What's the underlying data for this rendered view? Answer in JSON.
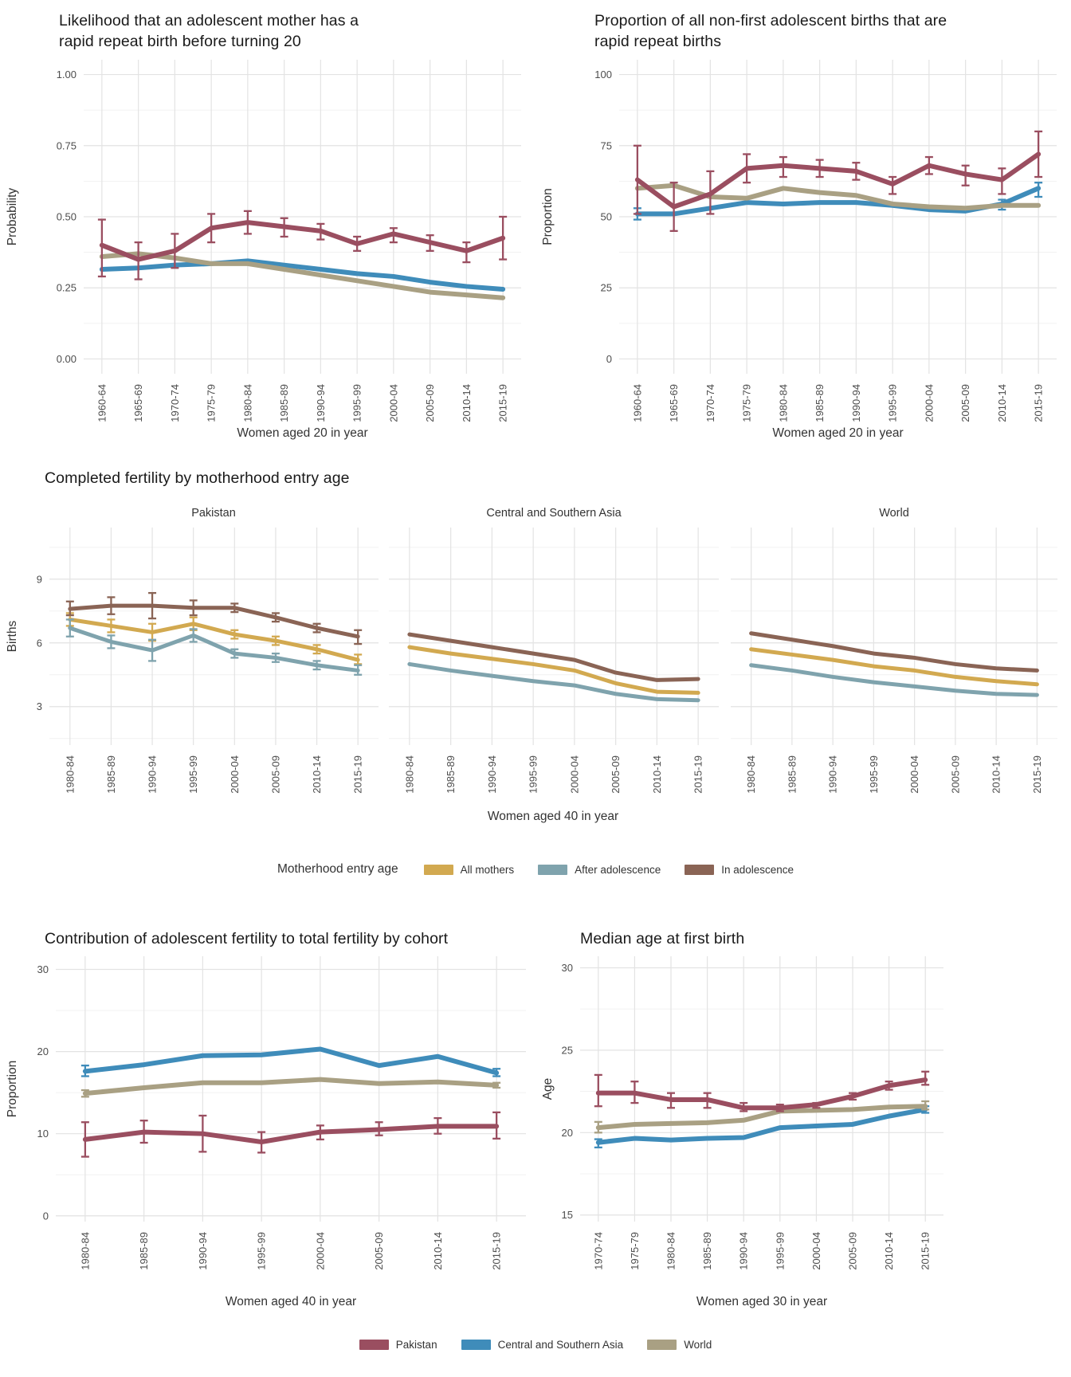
{
  "figure": {
    "background": "#ffffff"
  },
  "middle_section": {
    "title": "Completed fertility by motherhood entry age",
    "xlabel": "Women aged 40 in year"
  },
  "legend_entry_age": {
    "title": "Motherhood entry age",
    "items": [
      {
        "label": "All mothers",
        "color": "#d2a950"
      },
      {
        "label": "After adolescence",
        "color": "#7fa3ad"
      },
      {
        "label": "In adolescence",
        "color": "#8a6455"
      }
    ]
  },
  "legend_regions": {
    "items": [
      {
        "label": "Pakistan",
        "color": "#9a4e60"
      },
      {
        "label": "Central and Southern Asia",
        "color": "#3f8cba"
      },
      {
        "label": "World",
        "color": "#a9a083"
      }
    ]
  },
  "chart_data": [
    {
      "type": "line",
      "title": "Likelihood that an adolescent mother has a rapid repeat birth before turning 20",
      "title_line1": "Likelihood that an adolescent mother has a",
      "title_line2": "rapid repeat birth before turning 20",
      "xlabel": "Women aged 20 in year",
      "ylabel": "Probability",
      "categories": [
        "1960-64",
        "1965-69",
        "1970-74",
        "1975-79",
        "1980-84",
        "1985-89",
        "1990-94",
        "1995-99",
        "2000-04",
        "2005-09",
        "2010-14",
        "2015-19"
      ],
      "ylim": [
        -0.052,
        1.052
      ],
      "yticks": [
        0,
        0.25,
        0.5,
        0.75,
        1
      ],
      "ytick_labels": [
        "0.00",
        "0.25",
        "0.50",
        "0.75",
        "1.00"
      ],
      "grid": true,
      "legend_position": "none",
      "series": [
        {
          "name": "Central and Southern Asia",
          "color": "#3f8cba",
          "width": 6,
          "values": [
            0.315,
            0.32,
            0.33,
            0.335,
            0.345,
            0.33,
            0.315,
            0.3,
            0.29,
            0.27,
            0.255,
            0.245
          ]
        },
        {
          "name": "World",
          "color": "#a9a083",
          "width": 6,
          "values": [
            0.36,
            0.37,
            0.355,
            0.335,
            0.335,
            0.315,
            0.295,
            0.275,
            0.255,
            0.235,
            0.225,
            0.215
          ]
        },
        {
          "name": "Pakistan",
          "color": "#9a4e60",
          "width": 6,
          "values": [
            0.4,
            0.35,
            0.38,
            0.46,
            0.48,
            0.465,
            0.45,
            0.405,
            0.44,
            0.41,
            0.38,
            0.425
          ],
          "lo": [
            0.29,
            0.28,
            0.32,
            0.41,
            0.44,
            0.43,
            0.42,
            0.38,
            0.41,
            0.38,
            0.34,
            0.35
          ],
          "hi": [
            0.49,
            0.41,
            0.44,
            0.51,
            0.52,
            0.495,
            0.475,
            0.43,
            0.46,
            0.435,
            0.41,
            0.5
          ]
        }
      ]
    },
    {
      "type": "line",
      "title": "Proportion of all non-first adolescent births that are rapid repeat births",
      "title_line1": "Proportion of all non-first adolescent births that are",
      "title_line2": "rapid repeat births",
      "xlabel": "Women aged 20 in year",
      "ylabel": "Proportion",
      "categories": [
        "1960-64",
        "1965-69",
        "1970-74",
        "1975-79",
        "1980-84",
        "1985-89",
        "1990-94",
        "1995-99",
        "2000-04",
        "2005-09",
        "2010-14",
        "2015-19"
      ],
      "ylim": [
        -5.2,
        105.2
      ],
      "yticks": [
        0,
        25,
        50,
        75,
        100
      ],
      "ytick_labels": [
        "0",
        "25",
        "50",
        "75",
        "100"
      ],
      "grid": true,
      "legend_position": "none",
      "series": [
        {
          "name": "Central and Southern Asia",
          "color": "#3f8cba",
          "width": 6,
          "values": [
            51,
            51,
            53,
            55,
            54.5,
            55,
            55,
            54,
            52.5,
            52,
            54.5,
            60
          ],
          "lo": [
            49,
            null,
            null,
            null,
            null,
            null,
            null,
            null,
            null,
            null,
            52.5,
            57
          ],
          "hi": [
            53,
            null,
            null,
            null,
            null,
            null,
            null,
            null,
            null,
            null,
            56,
            62
          ]
        },
        {
          "name": "World",
          "color": "#a9a083",
          "width": 6,
          "values": [
            60,
            61,
            57,
            56.5,
            60,
            58.5,
            57.5,
            54.5,
            53.5,
            53,
            54,
            54
          ]
        },
        {
          "name": "Pakistan",
          "color": "#9a4e60",
          "width": 6,
          "values": [
            63,
            53.5,
            58,
            67,
            68,
            67,
            66,
            61.5,
            68,
            65,
            63,
            72
          ],
          "lo": [
            51,
            45,
            51,
            62,
            64,
            64,
            63,
            58,
            65,
            61,
            58,
            64
          ],
          "hi": [
            75,
            62,
            66,
            72,
            71,
            70,
            69,
            64,
            71,
            68,
            67,
            80
          ]
        }
      ]
    },
    {
      "type": "line",
      "facet": "Pakistan",
      "xlabel": "",
      "ylabel": "Births",
      "categories": [
        "1980-84",
        "1985-89",
        "1990-94",
        "1995-99",
        "2000-04",
        "2005-09",
        "2010-14",
        "2015-19"
      ],
      "ylim": [
        1.19,
        11.43
      ],
      "yticks": [
        3,
        6,
        9
      ],
      "ytick_labels": [
        "3",
        "6",
        "9"
      ],
      "grid": true,
      "legend_position": "bottom",
      "series": [
        {
          "name": "All mothers",
          "color": "#d2a950",
          "width": 5,
          "values": [
            7.1,
            6.8,
            6.5,
            6.9,
            6.4,
            6.1,
            5.7,
            5.2
          ],
          "lo": [
            6.8,
            6.5,
            6.1,
            6.6,
            6.2,
            5.9,
            5.5,
            5.0
          ],
          "hi": [
            7.4,
            7.1,
            6.9,
            7.2,
            6.6,
            6.3,
            5.9,
            5.45
          ]
        },
        {
          "name": "After adolescence",
          "color": "#7fa3ad",
          "width": 5,
          "values": [
            6.7,
            6.05,
            5.65,
            6.35,
            5.5,
            5.3,
            4.95,
            4.7
          ],
          "lo": [
            6.3,
            5.75,
            5.15,
            6.05,
            5.3,
            5.1,
            4.75,
            4.5
          ],
          "hi": [
            7.1,
            6.35,
            6.15,
            6.65,
            5.7,
            5.5,
            5.15,
            4.95
          ]
        },
        {
          "name": "In adolescence",
          "color": "#8a6455",
          "width": 5,
          "values": [
            7.6,
            7.75,
            7.75,
            7.65,
            7.65,
            7.2,
            6.7,
            6.3
          ],
          "lo": [
            7.3,
            7.35,
            7.15,
            7.3,
            7.45,
            7.0,
            6.5,
            5.95
          ],
          "hi": [
            7.95,
            8.15,
            8.35,
            8.0,
            7.85,
            7.4,
            6.9,
            6.6
          ]
        }
      ]
    },
    {
      "type": "line",
      "facet": "Central and Southern Asia",
      "xlabel": "",
      "ylabel": "",
      "categories": [
        "1980-84",
        "1985-89",
        "1990-94",
        "1995-99",
        "2000-04",
        "2005-09",
        "2010-14",
        "2015-19"
      ],
      "ylim": [
        1.19,
        11.43
      ],
      "yticks": [
        3,
        6,
        9
      ],
      "ytick_labels": [
        "3",
        "6",
        "9"
      ],
      "grid": true,
      "legend_position": "bottom",
      "series": [
        {
          "name": "All mothers",
          "color": "#d2a950",
          "width": 5,
          "values": [
            5.8,
            5.5,
            5.25,
            5.0,
            4.7,
            4.1,
            3.7,
            3.65
          ]
        },
        {
          "name": "After adolescence",
          "color": "#7fa3ad",
          "width": 5,
          "values": [
            5.0,
            4.7,
            4.45,
            4.2,
            4.0,
            3.6,
            3.35,
            3.3
          ]
        },
        {
          "name": "In adolescence",
          "color": "#8a6455",
          "width": 5,
          "values": [
            6.4,
            6.1,
            5.8,
            5.5,
            5.2,
            4.6,
            4.25,
            4.3
          ]
        }
      ]
    },
    {
      "type": "line",
      "facet": "World",
      "xlabel": "",
      "ylabel": "",
      "categories": [
        "1980-84",
        "1985-89",
        "1990-94",
        "1995-99",
        "2000-04",
        "2005-09",
        "2010-14",
        "2015-19"
      ],
      "ylim": [
        1.19,
        11.43
      ],
      "yticks": [
        3,
        6,
        9
      ],
      "ytick_labels": [
        "3",
        "6",
        "9"
      ],
      "grid": true,
      "legend_position": "bottom",
      "series": [
        {
          "name": "All mothers",
          "color": "#d2a950",
          "width": 5,
          "values": [
            5.7,
            5.45,
            5.2,
            4.9,
            4.7,
            4.4,
            4.2,
            4.05
          ]
        },
        {
          "name": "After adolescence",
          "color": "#7fa3ad",
          "width": 5,
          "values": [
            4.95,
            4.7,
            4.4,
            4.15,
            3.95,
            3.75,
            3.6,
            3.55
          ]
        },
        {
          "name": "In adolescence",
          "color": "#8a6455",
          "width": 5,
          "values": [
            6.45,
            6.15,
            5.85,
            5.5,
            5.3,
            5.0,
            4.8,
            4.7
          ]
        }
      ]
    },
    {
      "type": "line",
      "title": "Contribution of adolescent fertility to total fertility by cohort",
      "xlabel": "Women aged 40 in year",
      "ylabel": "Proportion",
      "categories": [
        "1980-84",
        "1985-89",
        "1990-94",
        "1995-99",
        "2000-04",
        "2005-09",
        "2010-14",
        "2015-19"
      ],
      "ylim": [
        -0.7,
        31.6
      ],
      "yticks": [
        0,
        10,
        20,
        30
      ],
      "ytick_labels": [
        "0",
        "10",
        "20",
        "30"
      ],
      "grid": true,
      "legend_position": "bottom",
      "series": [
        {
          "name": "Central and Southern Asia",
          "color": "#3f8cba",
          "width": 6,
          "values": [
            17.6,
            18.4,
            19.5,
            19.6,
            20.3,
            18.3,
            19.4,
            17.4
          ],
          "lo": [
            17.0,
            null,
            null,
            null,
            null,
            null,
            null,
            17.0
          ],
          "hi": [
            18.3,
            null,
            null,
            null,
            null,
            null,
            null,
            17.9
          ]
        },
        {
          "name": "World",
          "color": "#a9a083",
          "width": 6,
          "values": [
            14.9,
            15.6,
            16.2,
            16.2,
            16.6,
            16.1,
            16.3,
            15.9
          ],
          "lo": [
            14.5,
            null,
            null,
            null,
            null,
            null,
            null,
            15.6
          ],
          "hi": [
            15.3,
            null,
            null,
            null,
            null,
            null,
            null,
            16.2
          ]
        },
        {
          "name": "Pakistan",
          "color": "#9a4e60",
          "width": 6,
          "values": [
            9.3,
            10.2,
            10.0,
            9.0,
            10.2,
            10.5,
            10.9,
            10.9
          ],
          "lo": [
            7.2,
            8.9,
            7.8,
            7.7,
            9.3,
            9.8,
            10.0,
            9.4
          ],
          "hi": [
            11.4,
            11.6,
            12.2,
            10.2,
            11.0,
            11.4,
            11.9,
            12.6
          ]
        }
      ]
    },
    {
      "type": "line",
      "title": "Median age at first birth",
      "xlabel": "Women aged 30 in year",
      "ylabel": "Age",
      "categories": [
        "1970-74",
        "1975-79",
        "1980-84",
        "1985-89",
        "1990-94",
        "1995-99",
        "2000-04",
        "2005-09",
        "2010-14",
        "2015-19"
      ],
      "ylim": [
        14.6,
        30.7
      ],
      "yticks": [
        15,
        20,
        25,
        30
      ],
      "ytick_labels": [
        "15",
        "20",
        "25",
        "30"
      ],
      "grid": true,
      "legend_position": "bottom",
      "series": [
        {
          "name": "Central and Southern Asia",
          "color": "#3f8cba",
          "width": 6,
          "values": [
            19.4,
            19.65,
            19.55,
            19.65,
            19.7,
            20.3,
            20.4,
            20.5,
            21.0,
            21.4
          ],
          "lo": [
            19.1,
            null,
            null,
            null,
            null,
            null,
            null,
            null,
            null,
            21.2
          ],
          "hi": [
            19.6,
            null,
            null,
            null,
            null,
            null,
            null,
            null,
            null,
            21.6
          ]
        },
        {
          "name": "World",
          "color": "#a9a083",
          "width": 6,
          "values": [
            20.3,
            20.5,
            20.55,
            20.6,
            20.75,
            21.3,
            21.35,
            21.4,
            21.55,
            21.6
          ],
          "lo": [
            20.0,
            null,
            null,
            null,
            null,
            null,
            null,
            null,
            null,
            21.4
          ],
          "hi": [
            20.65,
            null,
            null,
            null,
            null,
            null,
            null,
            null,
            null,
            21.9
          ]
        },
        {
          "name": "Pakistan",
          "color": "#9a4e60",
          "width": 6,
          "values": [
            22.4,
            22.4,
            22.0,
            22.0,
            21.5,
            21.5,
            21.7,
            22.2,
            22.85,
            23.2
          ],
          "lo": [
            21.6,
            21.8,
            21.5,
            21.5,
            21.3,
            21.3,
            21.5,
            22.0,
            22.6,
            22.9
          ],
          "hi": [
            23.5,
            23.1,
            22.4,
            22.4,
            21.8,
            21.7,
            21.8,
            22.4,
            23.1,
            23.7
          ]
        }
      ]
    }
  ]
}
